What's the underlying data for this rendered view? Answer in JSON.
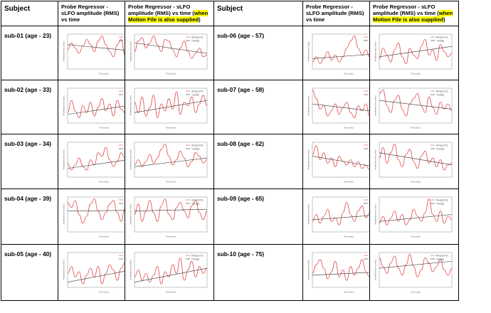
{
  "headers": {
    "subject": "Subject",
    "col_a": "Probe Regressor - sLFO amplitude (RMS) vs time",
    "col_b_main": "Probe Regressor - sLFO amplitude (RMS) vs time (",
    "col_b_hl": "when Motion File is also supplied",
    "col_b_end": ")"
  },
  "subjects": [
    "sub-01 (age - 23)",
    "sub-02 (age - 33)",
    "sub-03  (age - 34)",
    "sub-04  (age - 39)",
    "sub-05  (age - 40)",
    "sub-06  (age - 57)",
    "sub-07  (age - 58)",
    "sub-08 (age - 62)",
    "sub-09 (age - 65)",
    "sub-10 (age - 75)"
  ],
  "plot_legend": {
    "series": "Rms(sLFO)",
    "trend": "Trend(t)"
  },
  "plot_axis_labels": {
    "x": "Time (sec)",
    "y": "Amplitude (rms units)"
  },
  "plot_colors": {
    "series": "#e24a4a",
    "trend": "#333333",
    "axes": "#888888"
  },
  "chart_data": [
    {
      "type": "line",
      "subject": "sub-01",
      "variant": "probe",
      "trend": [
        0.7,
        0.5
      ],
      "series": {
        "name": "Rms(sLFO)",
        "values": [
          0.55,
          0.75,
          0.6,
          0.45,
          0.65,
          0.85,
          0.7,
          0.5,
          0.8,
          0.95,
          0.7,
          0.5,
          0.35,
          0.7,
          0.85,
          0.4,
          0.1,
          0.6,
          0.5,
          0.3
        ]
      }
    },
    {
      "type": "line",
      "subject": "sub-01",
      "variant": "motion",
      "trend": [
        0.75,
        0.45
      ],
      "series": {
        "name": "Rms(sLFO)",
        "values": [
          0.5,
          0.8,
          0.9,
          0.6,
          0.75,
          0.95,
          0.7,
          0.5,
          0.85,
          0.8,
          0.55,
          0.35,
          0.6,
          0.8,
          0.5,
          0.3,
          0.45,
          0.6,
          0.35,
          0.4
        ]
      }
    },
    {
      "type": "line",
      "subject": "sub-02",
      "variant": "probe",
      "trend": [
        0.25,
        0.55
      ],
      "series": {
        "name": "Rms(sLFO)",
        "values": [
          0.3,
          0.65,
          0.35,
          0.15,
          0.5,
          0.3,
          0.6,
          0.2,
          0.45,
          0.7,
          0.35,
          0.55,
          0.2,
          0.65,
          0.4,
          0.3,
          0.75,
          0.5,
          0.35,
          0.6
        ]
      }
    },
    {
      "type": "line",
      "subject": "sub-02",
      "variant": "motion",
      "trend": [
        0.3,
        0.65
      ],
      "series": {
        "name": "Rms(sLFO)",
        "values": [
          0.6,
          0.3,
          0.75,
          0.2,
          0.45,
          0.8,
          0.15,
          0.55,
          0.35,
          0.7,
          0.4,
          0.9,
          0.25,
          0.6,
          0.5,
          0.75,
          0.3,
          0.55,
          0.8,
          0.5
        ]
      }
    },
    {
      "type": "line",
      "subject": "sub-03",
      "variant": "probe",
      "trend": [
        0.25,
        0.55
      ],
      "series": {
        "name": "Rms(sLFO)",
        "values": [
          0.4,
          0.2,
          0.35,
          0.55,
          0.3,
          0.2,
          0.5,
          0.35,
          0.7,
          0.6,
          0.85,
          0.5,
          0.3,
          0.45,
          0.7,
          0.55,
          0.8,
          0.6,
          0.4,
          0.5
        ]
      }
    },
    {
      "type": "line",
      "subject": "sub-03",
      "variant": "motion",
      "trend": [
        0.3,
        0.55
      ],
      "series": {
        "name": "Rms(sLFO)",
        "values": [
          0.35,
          0.5,
          0.3,
          0.45,
          0.65,
          0.4,
          0.55,
          0.8,
          0.95,
          0.6,
          0.35,
          0.5,
          0.75,
          0.55,
          0.3,
          0.45,
          0.7,
          0.6,
          0.4,
          0.5
        ]
      }
    },
    {
      "type": "line",
      "subject": "sub-04",
      "variant": "probe",
      "trend": [
        0.6,
        0.62
      ],
      "series": {
        "name": "Rms(sLFO)",
        "values": [
          0.85,
          0.7,
          0.9,
          0.5,
          0.25,
          0.45,
          0.8,
          0.95,
          0.6,
          0.35,
          0.55,
          0.8,
          0.9,
          0.55,
          0.3,
          0.65,
          0.85,
          0.6,
          0.35,
          0.4
        ]
      }
    },
    {
      "type": "line",
      "subject": "sub-04",
      "variant": "motion",
      "trend": [
        0.6,
        0.65
      ],
      "series": {
        "name": "Rms(sLFO)",
        "values": [
          0.5,
          0.8,
          0.3,
          0.6,
          0.9,
          0.55,
          0.3,
          0.75,
          0.95,
          0.5,
          0.35,
          0.7,
          0.85,
          0.6,
          0.4,
          0.75,
          0.9,
          0.55,
          0.35,
          0.6
        ]
      }
    },
    {
      "type": "line",
      "subject": "sub-05",
      "variant": "probe",
      "trend": [
        0.15,
        0.55
      ],
      "series": {
        "name": "Rms(sLFO)",
        "values": [
          0.4,
          0.6,
          0.3,
          0.45,
          0.1,
          0.35,
          0.55,
          0.3,
          0.6,
          0.1,
          0.4,
          0.65,
          0.5,
          0.2,
          0.55,
          0.7,
          0.4,
          0.9,
          0.5,
          0.6
        ]
      }
    },
    {
      "type": "line",
      "subject": "sub-05",
      "variant": "motion",
      "trend": [
        0.15,
        0.55
      ],
      "series": {
        "name": "Rms(sLFO)",
        "values": [
          0.3,
          0.5,
          0.2,
          0.4,
          0.15,
          0.35,
          0.6,
          0.1,
          0.45,
          0.3,
          0.65,
          0.4,
          0.85,
          0.2,
          0.5,
          0.75,
          0.3,
          0.6,
          0.4,
          0.55
        ]
      }
    },
    {
      "type": "line",
      "subject": "sub-06",
      "variant": "probe",
      "trend": [
        0.3,
        0.45
      ],
      "series": {
        "name": "Rms(sLFO)",
        "values": [
          0.2,
          0.35,
          0.15,
          0.3,
          0.5,
          0.25,
          0.4,
          0.2,
          0.35,
          0.6,
          0.8,
          0.95,
          0.6,
          0.4,
          0.55,
          0.35,
          0.45,
          0.25,
          0.4,
          0.3
        ]
      }
    },
    {
      "type": "line",
      "subject": "sub-06",
      "variant": "motion",
      "trend": [
        0.35,
        0.65
      ],
      "series": {
        "name": "Rms(sLFO)",
        "values": [
          0.3,
          0.6,
          0.4,
          0.2,
          0.55,
          0.75,
          0.35,
          0.15,
          0.6,
          0.4,
          0.3,
          0.65,
          0.85,
          0.4,
          0.55,
          0.25,
          0.7,
          0.5,
          0.35,
          0.45
        ]
      }
    },
    {
      "type": "line",
      "subject": "sub-07",
      "variant": "probe",
      "trend": [
        0.55,
        0.3
      ],
      "series": {
        "name": "Rms(sLFO)",
        "values": [
          0.95,
          0.7,
          0.4,
          0.5,
          0.2,
          0.35,
          0.55,
          0.25,
          0.45,
          0.6,
          0.3,
          0.15,
          0.5,
          0.35,
          0.55,
          0.2,
          0.3,
          0.5,
          0.25,
          0.35
        ]
      }
    },
    {
      "type": "line",
      "subject": "sub-07",
      "variant": "motion",
      "trend": [
        0.65,
        0.4
      ],
      "series": {
        "name": "Rms(sLFO)",
        "values": [
          0.85,
          0.95,
          0.5,
          0.3,
          0.65,
          0.8,
          0.4,
          0.2,
          0.55,
          0.7,
          0.85,
          0.5,
          0.3,
          0.75,
          0.45,
          0.25,
          0.6,
          0.4,
          0.55,
          0.35
        ]
      }
    },
    {
      "type": "line",
      "subject": "sub-08",
      "variant": "probe",
      "trend": [
        0.6,
        0.25
      ],
      "series": {
        "name": "Rms(sLFO)",
        "values": [
          0.65,
          0.9,
          0.5,
          0.7,
          0.4,
          0.55,
          0.3,
          0.6,
          0.45,
          0.35,
          0.5,
          0.3,
          0.45,
          0.25,
          0.35,
          0.2,
          0.3,
          0.25,
          0.15,
          0.3
        ]
      }
    },
    {
      "type": "line",
      "subject": "sub-08",
      "variant": "motion",
      "trend": [
        0.7,
        0.35
      ],
      "series": {
        "name": "Rms(sLFO)",
        "values": [
          0.55,
          0.85,
          0.4,
          0.7,
          0.95,
          0.5,
          0.3,
          0.65,
          0.8,
          0.45,
          0.25,
          0.6,
          0.75,
          0.4,
          0.55,
          0.3,
          0.5,
          0.2,
          0.35,
          0.4
        ]
      }
    },
    {
      "type": "line",
      "subject": "sub-09",
      "variant": "probe",
      "trend": [
        0.35,
        0.5
      ],
      "series": {
        "name": "Rms(sLFO)",
        "values": [
          0.3,
          0.5,
          0.25,
          0.45,
          0.65,
          0.3,
          0.4,
          0.2,
          0.55,
          0.85,
          0.5,
          0.3,
          0.6,
          0.75,
          0.4,
          0.55,
          0.3,
          0.5,
          0.35,
          0.45
        ]
      }
    },
    {
      "type": "line",
      "subject": "sub-09",
      "variant": "motion",
      "trend": [
        0.3,
        0.5
      ],
      "series": {
        "name": "Rms(sLFO)",
        "values": [
          0.25,
          0.45,
          0.2,
          0.4,
          0.6,
          0.3,
          0.5,
          0.2,
          0.35,
          0.65,
          0.45,
          0.3,
          0.55,
          0.95,
          0.5,
          0.3,
          0.6,
          0.25,
          0.45,
          0.35
        ]
      }
    },
    {
      "type": "line",
      "subject": "sub-10",
      "variant": "probe",
      "trend": [
        0.35,
        0.45
      ],
      "series": {
        "name": "Rms(sLFO)",
        "values": [
          0.4,
          0.65,
          0.8,
          0.55,
          0.25,
          0.45,
          0.75,
          0.3,
          0.5,
          0.2,
          0.6,
          0.35,
          0.55,
          0.8,
          0.45,
          0.3,
          0.6,
          0.45,
          0.3,
          0.4
        ]
      }
    },
    {
      "type": "line",
      "subject": "sub-10",
      "variant": "motion",
      "trend": [
        0.55,
        0.75
      ],
      "series": {
        "name": "Rms(sLFO)",
        "values": [
          0.85,
          0.6,
          0.4,
          0.7,
          0.9,
          0.55,
          0.35,
          0.65,
          0.95,
          0.6,
          0.3,
          0.5,
          0.85,
          0.7,
          0.45,
          0.6,
          0.8,
          0.5,
          0.35,
          0.55
        ]
      }
    }
  ]
}
